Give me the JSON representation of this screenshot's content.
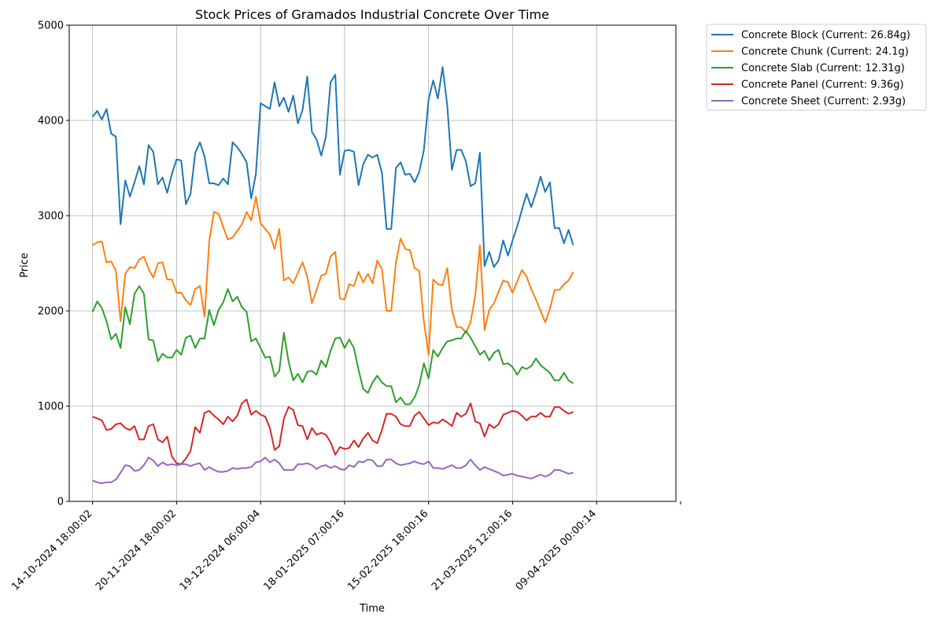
{
  "chart_data": {
    "type": "line",
    "title": "Stock Prices of Gramados Industrial Concrete Over Time",
    "xlabel": "Time",
    "ylabel": "Price",
    "ylim": [
      0,
      5000
    ],
    "xlim": [
      -5,
      125
    ],
    "grid": true,
    "legend_position": "outside-top-right",
    "y_ticks": [
      0,
      1000,
      2000,
      3000,
      4000,
      5000
    ],
    "x_ticks": [
      {
        "index": 0,
        "label": "14-10-2024 18:00:02"
      },
      {
        "index": 18,
        "label": "20-11-2024 18:00:02"
      },
      {
        "index": 36,
        "label": "19-12-2024 06:00:04"
      },
      {
        "index": 54,
        "label": "18-01-2025 07:00:16"
      },
      {
        "index": 72,
        "label": "15-02-2025 18:00:16"
      },
      {
        "index": 90,
        "label": "21-03-2025 12:00:16"
      },
      {
        "index": 108,
        "label": "09-04-2025 00:00:14"
      },
      {
        "index": 126,
        "label": ""
      }
    ],
    "series": [
      {
        "name": "Concrete Block (Current: 26.84g)",
        "color": "#1f77b4",
        "values": [
          4040,
          4100,
          4010,
          4120,
          3860,
          3830,
          2910,
          3370,
          3200,
          3350,
          3520,
          3330,
          3740,
          3670,
          3330,
          3400,
          3240,
          3440,
          3590,
          3580,
          3120,
          3230,
          3660,
          3770,
          3620,
          3340,
          3340,
          3320,
          3390,
          3330,
          3770,
          3720,
          3650,
          3560,
          3180,
          3440,
          4180,
          4150,
          4120,
          4400,
          4150,
          4240,
          4090,
          4260,
          3970,
          4110,
          4460,
          3880,
          3800,
          3630,
          3830,
          4400,
          4480,
          3430,
          3680,
          3690,
          3670,
          3320,
          3540,
          3640,
          3610,
          3640,
          3450,
          2860,
          2860,
          3500,
          3560,
          3430,
          3440,
          3350,
          3460,
          3690,
          4220,
          4420,
          4230,
          4560,
          4160,
          3480,
          3690,
          3690,
          3570,
          3310,
          3340,
          3660,
          2470,
          2620,
          2460,
          2530,
          2740,
          2580,
          2740,
          2890,
          3060,
          3230,
          3090,
          3240,
          3410,
          3250,
          3350,
          2870,
          2870,
          2710,
          2850,
          2690
        ]
      },
      {
        "name": "Concrete Chunk (Current: 24.1g)",
        "color": "#ff7f0e",
        "values": [
          2690,
          2720,
          2730,
          2510,
          2520,
          2420,
          1890,
          2390,
          2460,
          2450,
          2540,
          2570,
          2440,
          2350,
          2500,
          2510,
          2330,
          2330,
          2190,
          2190,
          2110,
          2060,
          2230,
          2260,
          1940,
          2730,
          3040,
          3020,
          2880,
          2750,
          2770,
          2840,
          2910,
          3040,
          2950,
          3200,
          2920,
          2860,
          2800,
          2650,
          2860,
          2320,
          2350,
          2290,
          2400,
          2510,
          2360,
          2080,
          2220,
          2370,
          2390,
          2570,
          2620,
          2130,
          2120,
          2280,
          2260,
          2410,
          2300,
          2390,
          2290,
          2530,
          2440,
          2000,
          2000,
          2510,
          2760,
          2650,
          2640,
          2450,
          2420,
          1890,
          1540,
          2330,
          2280,
          2270,
          2450,
          2010,
          1830,
          1830,
          1770,
          1880,
          2160,
          2690,
          1800,
          2010,
          2080,
          2200,
          2320,
          2300,
          2190,
          2310,
          2430,
          2360,
          2230,
          2120,
          2000,
          1880,
          2020,
          2220,
          2220,
          2280,
          2320,
          2410
        ]
      },
      {
        "name": "Concrete Slab (Current: 12.31g)",
        "color": "#2ca02c",
        "values": [
          1990,
          2100,
          2030,
          1890,
          1700,
          1760,
          1610,
          2040,
          1860,
          2180,
          2260,
          2180,
          1700,
          1690,
          1470,
          1550,
          1510,
          1510,
          1590,
          1540,
          1720,
          1740,
          1610,
          1710,
          1710,
          2010,
          1850,
          2010,
          2090,
          2230,
          2100,
          2150,
          2040,
          1990,
          1680,
          1710,
          1610,
          1510,
          1520,
          1310,
          1370,
          1770,
          1470,
          1270,
          1340,
          1250,
          1360,
          1370,
          1330,
          1480,
          1410,
          1580,
          1710,
          1720,
          1610,
          1700,
          1610,
          1380,
          1180,
          1140,
          1250,
          1320,
          1250,
          1210,
          1210,
          1040,
          1090,
          1020,
          1020,
          1090,
          1220,
          1450,
          1290,
          1590,
          1520,
          1610,
          1680,
          1690,
          1710,
          1710,
          1790,
          1720,
          1630,
          1540,
          1580,
          1480,
          1560,
          1590,
          1440,
          1450,
          1410,
          1330,
          1410,
          1390,
          1420,
          1500,
          1430,
          1390,
          1350,
          1270,
          1270,
          1350,
          1270,
          1240
        ]
      },
      {
        "name": "Concrete Panel (Current: 9.36g)",
        "color": "#d62728",
        "values": [
          890,
          870,
          850,
          750,
          760,
          810,
          820,
          770,
          750,
          790,
          650,
          650,
          790,
          810,
          650,
          620,
          680,
          470,
          400,
          390,
          450,
          530,
          780,
          720,
          930,
          950,
          900,
          860,
          810,
          890,
          840,
          900,
          1030,
          1070,
          910,
          950,
          910,
          890,
          770,
          540,
          580,
          870,
          990,
          960,
          800,
          790,
          650,
          770,
          700,
          720,
          700,
          620,
          490,
          570,
          550,
          560,
          640,
          570,
          660,
          720,
          640,
          610,
          750,
          920,
          920,
          890,
          810,
          790,
          790,
          900,
          940,
          870,
          800,
          830,
          820,
          860,
          830,
          790,
          930,
          890,
          920,
          1030,
          840,
          820,
          680,
          810,
          770,
          810,
          910,
          930,
          950,
          940,
          900,
          850,
          890,
          890,
          930,
          890,
          890,
          990,
          990,
          950,
          920,
          940
        ]
      },
      {
        "name": "Concrete Sheet (Current: 2.93g)",
        "color": "#9467bd",
        "values": [
          220,
          200,
          190,
          200,
          200,
          230,
          300,
          380,
          370,
          320,
          330,
          380,
          460,
          430,
          370,
          410,
          380,
          390,
          380,
          390,
          390,
          370,
          390,
          400,
          330,
          360,
          330,
          310,
          310,
          320,
          350,
          340,
          350,
          350,
          360,
          410,
          420,
          460,
          410,
          440,
          400,
          330,
          330,
          330,
          390,
          390,
          400,
          380,
          340,
          370,
          380,
          350,
          370,
          340,
          330,
          380,
          360,
          420,
          410,
          440,
          430,
          370,
          370,
          440,
          440,
          400,
          380,
          390,
          400,
          420,
          400,
          390,
          420,
          350,
          350,
          340,
          360,
          380,
          350,
          350,
          380,
          440,
          380,
          330,
          360,
          340,
          320,
          300,
          270,
          280,
          290,
          270,
          260,
          250,
          240,
          260,
          280,
          260,
          280,
          330,
          330,
          310,
          290,
          300
        ]
      }
    ]
  }
}
